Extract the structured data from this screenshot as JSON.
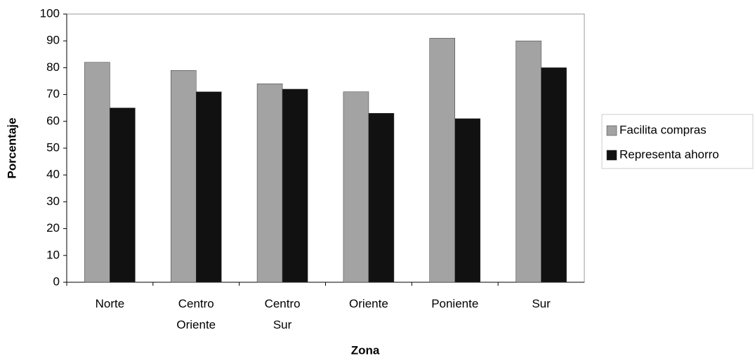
{
  "chart_data": {
    "type": "bar",
    "xlabel": "Zona",
    "ylabel": "Porcentaje",
    "categories": [
      "Norte",
      "Centro Oriente",
      "Centro Sur",
      "Oriente",
      "Poniente",
      "Sur"
    ],
    "series": [
      {
        "name": "Facilita compras",
        "color": "#a3a3a3",
        "values": [
          82,
          79,
          74,
          71,
          91,
          90
        ]
      },
      {
        "name": "Representa ahorro",
        "color": "#111111",
        "values": [
          65,
          71,
          72,
          63,
          61,
          80
        ]
      }
    ],
    "ylim": [
      0,
      100
    ],
    "yticks": [
      0,
      10,
      20,
      30,
      40,
      50,
      60,
      70,
      80,
      90,
      100
    ],
    "grid": false,
    "legend": "right"
  }
}
